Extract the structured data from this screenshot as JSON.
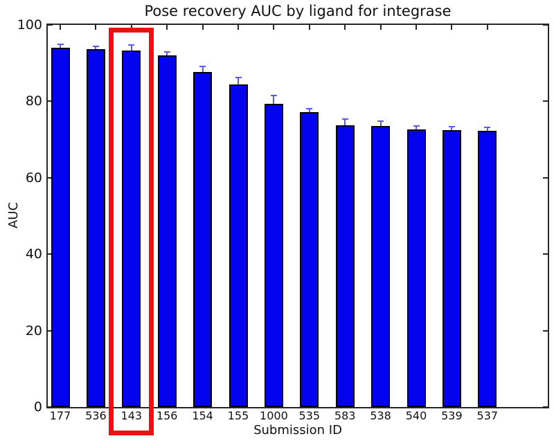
{
  "figure": {
    "background": "#ffffff"
  },
  "chart_data": {
    "type": "bar",
    "title": "Pose recovery AUC by ligand for integrase",
    "xlabel": "Submission ID",
    "ylabel": "AUC",
    "categories": [
      "177",
      "536",
      "143",
      "156",
      "154",
      "155",
      "1000",
      "535",
      "583",
      "538",
      "540",
      "539",
      "537"
    ],
    "values": [
      94.0,
      93.6,
      93.3,
      92.0,
      87.6,
      84.5,
      79.4,
      77.2,
      73.8,
      73.6,
      72.7,
      72.4,
      72.3
    ],
    "errors_plus": [
      0.9,
      0.7,
      1.4,
      0.9,
      1.5,
      1.7,
      2.1,
      0.8,
      1.5,
      1.3,
      0.9,
      0.9,
      0.9
    ],
    "ylim": [
      0,
      100
    ],
    "yticks": [
      0,
      20,
      40,
      60,
      80,
      100
    ],
    "grid": false,
    "legend": null,
    "bar_color": "#0303f0",
    "bar_edge_color": "#00000e",
    "error_color": "#5a5ae2",
    "axis_color": "#262626",
    "text_color": "#111111",
    "highlight": {
      "shape": "rect",
      "category": "143",
      "index": 2,
      "color": "#ee1010"
    }
  }
}
